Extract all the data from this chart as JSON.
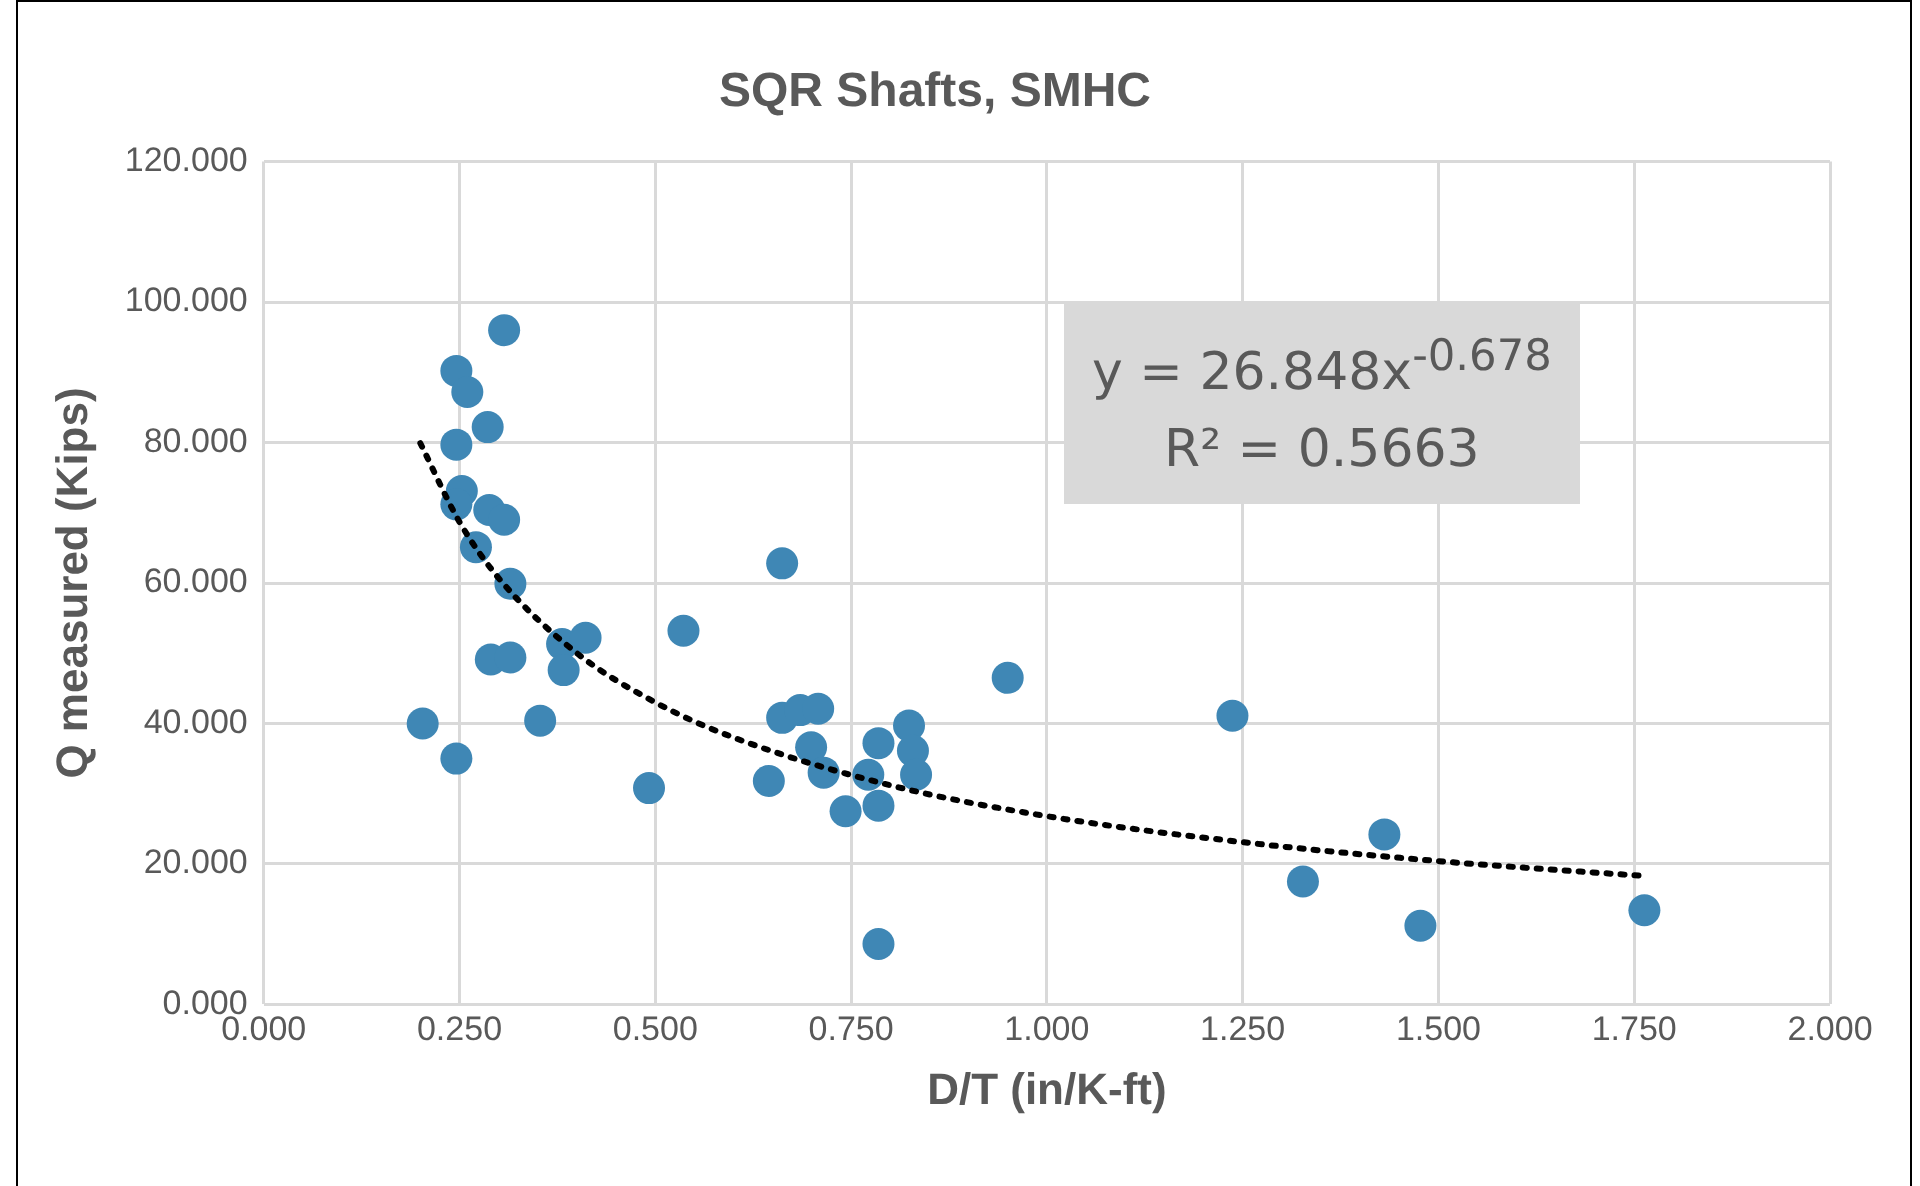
{
  "chart_data": {
    "type": "scatter",
    "title": "SQR Shafts, SMHC",
    "xlabel": "D/T (in/K-ft)",
    "ylabel": "Q measured (Kips)",
    "xlim": [
      0,
      2
    ],
    "xticks": [
      {
        "value": 0,
        "label": "0.000"
      },
      {
        "value": 0.25,
        "label": "0.250"
      },
      {
        "value": 0.5,
        "label": "0.500"
      },
      {
        "value": 0.75,
        "label": "0.750"
      },
      {
        "value": 1,
        "label": "1.000"
      },
      {
        "value": 1.25,
        "label": "1.250"
      },
      {
        "value": 1.5,
        "label": "1.500"
      },
      {
        "value": 1.75,
        "label": "1.750"
      },
      {
        "value": 2,
        "label": "2.000"
      }
    ],
    "ylim": [
      0,
      120
    ],
    "yticks": [
      {
        "value": 0,
        "label": "0.000"
      },
      {
        "value": 20,
        "label": "20.000"
      },
      {
        "value": 40,
        "label": "40.000"
      },
      {
        "value": 60,
        "label": "60.000"
      },
      {
        "value": 80,
        "label": "80.000"
      },
      {
        "value": 100,
        "label": "100.000"
      },
      {
        "value": 120,
        "label": "120.000"
      }
    ],
    "grid": true,
    "legend": false,
    "marker": "circle",
    "annotations": [
      "y = 26.848x$^{-0.678}$",
      "R² = 0.5663"
    ],
    "series": [
      {
        "type": "scatter",
        "color": "#3f87b5",
        "x": [
          0.307,
          0.246,
          0.26,
          0.286,
          0.246,
          0.253,
          0.246,
          0.288,
          0.307,
          0.271,
          0.315,
          0.381,
          0.411,
          0.383,
          0.29,
          0.315,
          0.536,
          0.203,
          0.246,
          0.353,
          0.492,
          0.662,
          0.95,
          0.662,
          0.685,
          0.708,
          0.699,
          0.645,
          0.715,
          0.772,
          0.785,
          0.824,
          0.829,
          0.833,
          0.743,
          0.785,
          0.785,
          1.237,
          1.431,
          1.327,
          1.477,
          1.763
        ],
        "values": [
          96.0,
          90.2,
          87.2,
          82.2,
          79.7,
          73.1,
          71.2,
          70.4,
          69.0,
          65.1,
          59.9,
          51.3,
          52.2,
          47.6,
          49.1,
          49.4,
          53.2,
          40.0,
          35.0,
          40.4,
          30.8,
          62.8,
          46.5,
          40.8,
          41.9,
          42.1,
          36.6,
          31.8,
          33.0,
          32.7,
          37.2,
          39.7,
          36.1,
          32.7,
          27.5,
          28.3,
          8.6,
          41.1,
          24.2,
          17.5,
          11.2,
          13.4
        ]
      },
      {
        "type": "line",
        "color": "#000000",
        "line_style": "dotted",
        "marker": "none",
        "x": [
          0.2,
          0.25,
          0.3,
          0.4,
          0.5,
          0.6,
          0.8,
          1.0,
          1.25,
          1.5,
          1.76
        ],
        "values": [
          79.9,
          68.7,
          60.7,
          50.0,
          43.0,
          38.0,
          31.2,
          26.8,
          23.1,
          20.4,
          18.3
        ]
      }
    ]
  }
}
